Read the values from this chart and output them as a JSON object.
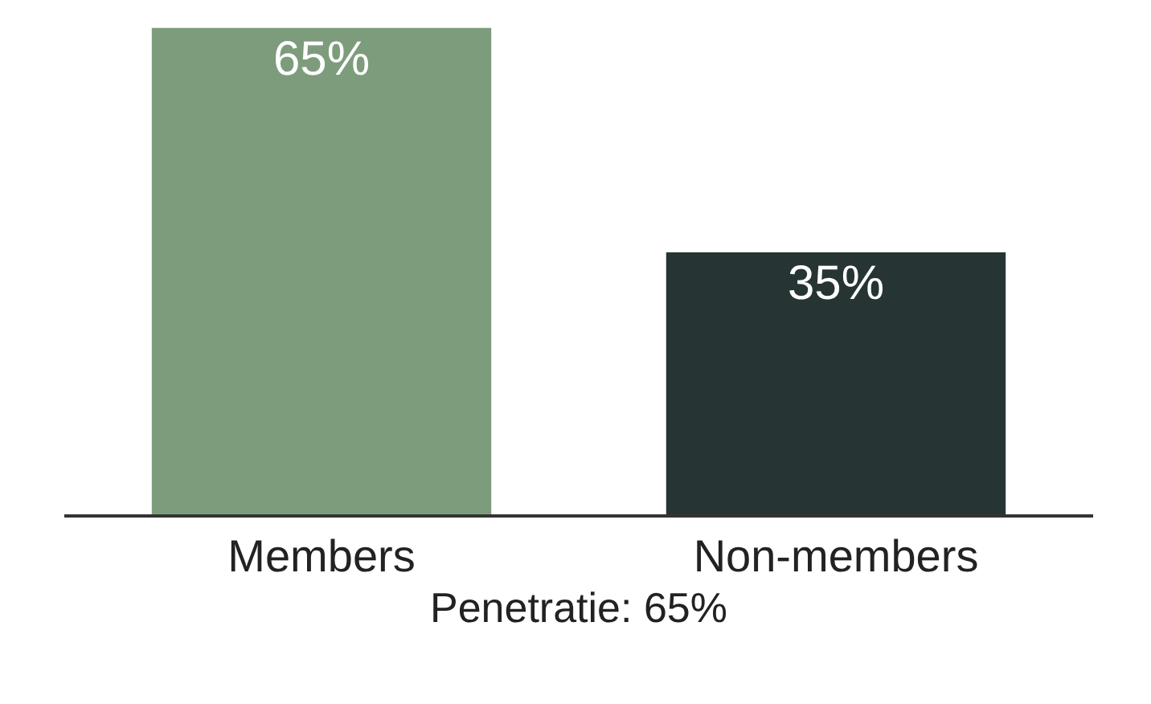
{
  "chart_data": {
    "type": "bar",
    "categories": [
      "Members",
      "Non-members"
    ],
    "values": [
      65,
      35
    ],
    "colors": [
      "#7d9c7c",
      "#263533"
    ],
    "value_labels": [
      "65%",
      "35%"
    ],
    "xlabel": "Penetratie: 65%"
  }
}
